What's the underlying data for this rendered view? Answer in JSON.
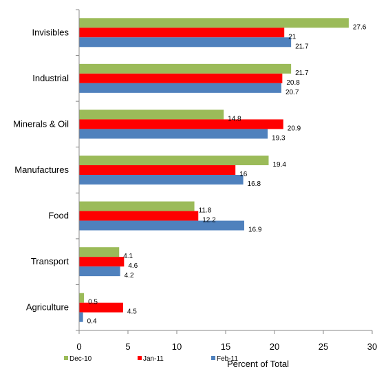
{
  "chart_data": {
    "type": "bar",
    "orientation": "horizontal",
    "categories": [
      "Invisibles",
      "Industrial",
      "Minerals & Oil",
      "Manufactures",
      "Food",
      "Transport",
      "Agriculture"
    ],
    "series": [
      {
        "name": "Dec-10",
        "color": "#9bbb59",
        "values": [
          27.6,
          21.7,
          14.8,
          19.4,
          11.8,
          4.1,
          0.5
        ]
      },
      {
        "name": "Jan-11",
        "color": "#ff0000",
        "values": [
          21,
          20.8,
          20.9,
          16,
          12.2,
          4.6,
          4.5
        ]
      },
      {
        "name": "Feb-11",
        "color": "#4f81bd",
        "values": [
          21.7,
          20.7,
          19.3,
          16.8,
          16.9,
          4.2,
          0.4
        ]
      }
    ],
    "xlabel": "Percent of Total",
    "ylabel": "",
    "title": "",
    "xlim": [
      0,
      30
    ],
    "xticks": [
      0,
      5,
      10,
      15,
      20,
      25,
      30
    ],
    "grid": false,
    "legend_position": "bottom"
  }
}
